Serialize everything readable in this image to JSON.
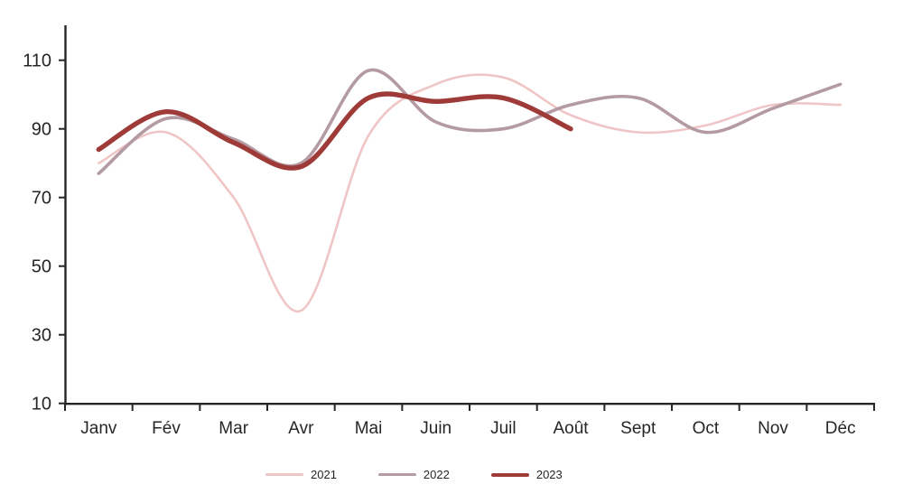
{
  "chart_data": {
    "type": "line",
    "title": "",
    "xlabel": "",
    "ylabel": "",
    "categories": [
      "Janv",
      "Fév",
      "Mar",
      "Avr",
      "Mai",
      "Juin",
      "Juil",
      "Août",
      "Sept",
      "Oct",
      "Nov",
      "Déc"
    ],
    "series": [
      {
        "name": "2021",
        "color": "#efc5c6",
        "stroke_width": 2.6,
        "values": [
          80,
          89,
          70,
          37,
          88,
          103,
          105,
          94,
          89,
          91,
          97,
          97
        ]
      },
      {
        "name": "2022",
        "color": "#b49aa2",
        "stroke_width": 3.6,
        "values": [
          77,
          93,
          87,
          80,
          107,
          92,
          90,
          97,
          99,
          89,
          96,
          103
        ]
      },
      {
        "name": "2023",
        "color": "#9e3b38",
        "stroke_width": 5.4,
        "values": [
          84,
          95,
          86,
          79,
          99,
          98,
          99,
          90
        ]
      }
    ],
    "ylim": [
      10,
      110
    ],
    "yticks": [
      110,
      90,
      70,
      50,
      30,
      10
    ],
    "grid": false,
    "smoothed": true,
    "legend_position": "bottom"
  },
  "style": {
    "axis_color": "#262626",
    "background": "#ffffff"
  }
}
